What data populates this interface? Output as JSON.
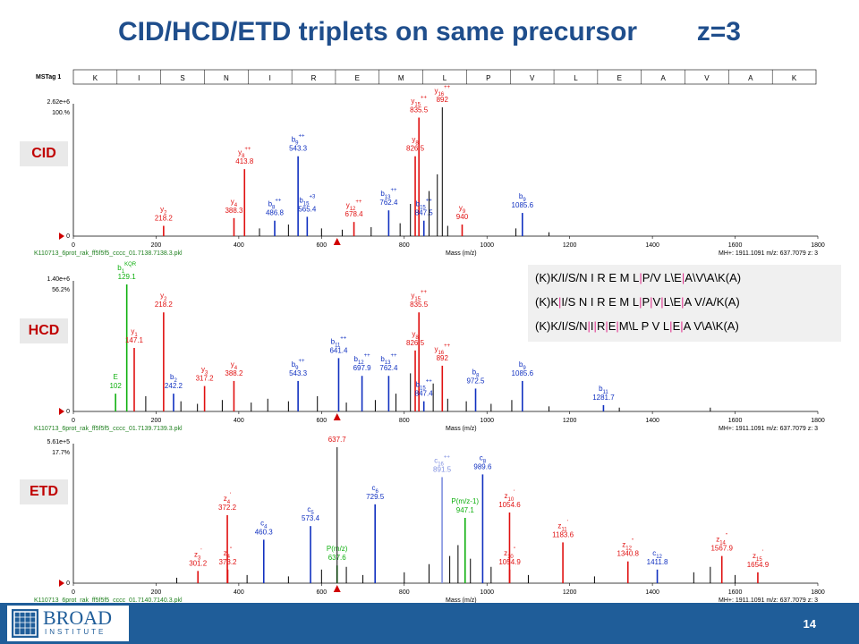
{
  "title": "CID/HCD/ETD triplets on same precursor        z=3",
  "colors": {
    "title": "#1f4e8c",
    "tag_text": "#c00000",
    "red": "#e01010",
    "blue": "#1030c0",
    "green": "#10b010",
    "footer": "#1f5d99"
  },
  "sequence_header": {
    "label": "MSTag 1",
    "residues": [
      "K",
      "I",
      "S",
      "N",
      "I",
      "R",
      "E",
      "M",
      "L",
      "P",
      "V",
      "L",
      "E",
      "A",
      "V",
      "A",
      "K"
    ]
  },
  "sequence_box": {
    "lines": [
      [
        "(K)K",
        "/I",
        "/S",
        "/N I R E M L",
        "|P",
        "/V L",
        "\\E",
        "|A",
        "\\V",
        "\\A",
        "\\K(A)"
      ],
      [
        "(K)K",
        "|I",
        "/S N I R E M L",
        "|P",
        "|V",
        "|L",
        "\\E",
        "|A V",
        "/A",
        "/K(A)"
      ],
      [
        "(K)K",
        "/I",
        "/S",
        "/N",
        "|I",
        "|R",
        "|E",
        "|M",
        "\\L P V L",
        "|E",
        "|A V",
        "\\A",
        "\\K(A)"
      ]
    ]
  },
  "chart_data": [
    {
      "type": "bar",
      "panel_label": "CID",
      "xlabel": "Mass (m/z)",
      "xlim": [
        0,
        1800
      ],
      "x_ticks": [
        "0",
        "200",
        "400",
        "600",
        "800",
        "1000",
        "1200",
        "1400",
        "1600",
        "1800"
      ],
      "ylim": [
        0,
        100
      ],
      "intensity_max": "2.62e+6",
      "intensity_pct": "100.%",
      "y_bottom": "0",
      "filename": "K110713_6prot_rak_ff5f5f5_cccc_01.7138.7138.3.pkl",
      "precursor": "MH+: 1911.1091   m/z: 637.7079   z: 3",
      "peaks": [
        {
          "x": 218.2,
          "y": 8,
          "c": "red",
          "l": [
            "y",
            "2",
            "",
            "218.2"
          ]
        },
        {
          "x": 388.3,
          "y": 14,
          "c": "red",
          "l": [
            "y",
            "4",
            "",
            "388.3"
          ]
        },
        {
          "x": 413.8,
          "y": 52,
          "c": "red",
          "l": [
            "y",
            "8",
            "++",
            "413.8"
          ]
        },
        {
          "x": 486.8,
          "y": 12,
          "c": "blue",
          "l": [
            "b",
            "8",
            "++",
            "486.8"
          ]
        },
        {
          "x": 543.3,
          "y": 62,
          "c": "blue",
          "l": [
            "b",
            "9",
            "++",
            "543.3"
          ]
        },
        {
          "x": 565.4,
          "y": 15,
          "c": "blue",
          "l": [
            "b",
            "15",
            "+3",
            "565.4"
          ]
        },
        {
          "x": 678.4,
          "y": 11,
          "c": "red",
          "l": [
            "y",
            "12",
            "++",
            "678.4"
          ]
        },
        {
          "x": 762.4,
          "y": 20,
          "c": "blue",
          "l": [
            "b",
            "13",
            "++",
            "762.4"
          ]
        },
        {
          "x": 826.5,
          "y": 62,
          "c": "red",
          "l": [
            "y",
            "8",
            "",
            "826.5"
          ]
        },
        {
          "x": 835.5,
          "y": 92,
          "c": "red",
          "l": [
            "y",
            "15",
            "++",
            "835.5"
          ]
        },
        {
          "x": 847.5,
          "y": 12,
          "c": "blue",
          "l": [
            "b",
            "15",
            "++",
            "847.5"
          ]
        },
        {
          "x": 892,
          "y": 100,
          "c": "black",
          "l": [
            "y",
            "16",
            "++",
            "892"
          ]
        },
        {
          "x": 940,
          "y": 9,
          "c": "red",
          "l": [
            "y",
            "9",
            "",
            "940"
          ]
        },
        {
          "x": 1085.6,
          "y": 18,
          "c": "blue",
          "l": [
            "b",
            "9",
            "",
            "1085.6"
          ]
        },
        {
          "x": 450,
          "y": 6,
          "c": "black"
        },
        {
          "x": 520,
          "y": 9,
          "c": "black"
        },
        {
          "x": 600,
          "y": 6,
          "c": "black"
        },
        {
          "x": 650,
          "y": 5,
          "c": "black"
        },
        {
          "x": 720,
          "y": 7,
          "c": "black"
        },
        {
          "x": 790,
          "y": 10,
          "c": "black"
        },
        {
          "x": 815,
          "y": 25,
          "c": "black"
        },
        {
          "x": 860,
          "y": 35,
          "c": "black"
        },
        {
          "x": 880,
          "y": 48,
          "c": "black"
        },
        {
          "x": 905,
          "y": 8,
          "c": "black"
        },
        {
          "x": 1070,
          "y": 6,
          "c": "black"
        },
        {
          "x": 1150,
          "y": 3,
          "c": "black"
        }
      ]
    },
    {
      "type": "bar",
      "panel_label": "HCD",
      "xlabel": "Mass (m/z)",
      "xlim": [
        0,
        1800
      ],
      "x_ticks": [
        "0",
        "200",
        "400",
        "600",
        "800",
        "1000",
        "1200",
        "1400",
        "1600",
        "1800"
      ],
      "ylim": [
        0,
        100
      ],
      "intensity_max": "1.40e+6",
      "intensity_pct": "56.2%",
      "y_bottom": "0",
      "filename": "K110713_6prot_rak_ff5f5f5_cccc_01.7139.7139.3.pkl",
      "precursor": "MH+: 1911.1091   m/z: 637.7079   z: 3",
      "peaks": [
        {
          "x": 102,
          "y": 14,
          "c": "green",
          "l": [
            "E",
            "",
            "",
            "102"
          ]
        },
        {
          "x": 129.1,
          "y": 100,
          "c": "green",
          "l": [
            "b",
            "1",
            "KQR",
            "129.1"
          ]
        },
        {
          "x": 147.1,
          "y": 50,
          "c": "red",
          "l": [
            "y",
            "1",
            "",
            "147.1"
          ]
        },
        {
          "x": 218.2,
          "y": 78,
          "c": "red",
          "l": [
            "y",
            "2",
            "",
            "218.2"
          ]
        },
        {
          "x": 242.2,
          "y": 14,
          "c": "blue",
          "l": [
            "b",
            "2",
            "",
            "242.2"
          ]
        },
        {
          "x": 317.2,
          "y": 20,
          "c": "red",
          "l": [
            "y",
            "3",
            "",
            "317.2"
          ]
        },
        {
          "x": 388.2,
          "y": 24,
          "c": "red",
          "l": [
            "y",
            "4",
            "",
            "388.2"
          ]
        },
        {
          "x": 543.3,
          "y": 24,
          "c": "blue",
          "l": [
            "b",
            "9",
            "++",
            "543.3"
          ]
        },
        {
          "x": 641.4,
          "y": 42,
          "c": "blue",
          "l": [
            "b",
            "11",
            "++",
            "641.4"
          ]
        },
        {
          "x": 697.9,
          "y": 28,
          "c": "blue",
          "l": [
            "b",
            "12",
            "++",
            "697.9"
          ]
        },
        {
          "x": 762.4,
          "y": 28,
          "c": "blue",
          "l": [
            "b",
            "13",
            "++",
            "762.4"
          ]
        },
        {
          "x": 826.5,
          "y": 48,
          "c": "red",
          "l": [
            "y",
            "8",
            "",
            "826.5"
          ]
        },
        {
          "x": 835.5,
          "y": 78,
          "c": "red",
          "l": [
            "y",
            "15",
            "++",
            "835.5"
          ]
        },
        {
          "x": 847.4,
          "y": 8,
          "c": "blue",
          "l": [
            "b",
            "15",
            "++",
            "847.4"
          ]
        },
        {
          "x": 892,
          "y": 36,
          "c": "red",
          "l": [
            "y",
            "16",
            "++",
            "892"
          ]
        },
        {
          "x": 972.5,
          "y": 18,
          "c": "blue",
          "l": [
            "b",
            "8",
            "",
            "972.5"
          ]
        },
        {
          "x": 1085.6,
          "y": 24,
          "c": "blue",
          "l": [
            "b",
            "9",
            "",
            "1085.6"
          ]
        },
        {
          "x": 1281.7,
          "y": 5,
          "c": "blue",
          "l": [
            "b",
            "11",
            "",
            "1281.7"
          ]
        },
        {
          "x": 175,
          "y": 12,
          "c": "black"
        },
        {
          "x": 260,
          "y": 8,
          "c": "black"
        },
        {
          "x": 300,
          "y": 6,
          "c": "black"
        },
        {
          "x": 360,
          "y": 9,
          "c": "black"
        },
        {
          "x": 430,
          "y": 7,
          "c": "black"
        },
        {
          "x": 470,
          "y": 10,
          "c": "black"
        },
        {
          "x": 520,
          "y": 8,
          "c": "black"
        },
        {
          "x": 590,
          "y": 12,
          "c": "black"
        },
        {
          "x": 660,
          "y": 7,
          "c": "black"
        },
        {
          "x": 730,
          "y": 9,
          "c": "black"
        },
        {
          "x": 780,
          "y": 14,
          "c": "black"
        },
        {
          "x": 815,
          "y": 30,
          "c": "black"
        },
        {
          "x": 870,
          "y": 22,
          "c": "black"
        },
        {
          "x": 905,
          "y": 10,
          "c": "black"
        },
        {
          "x": 950,
          "y": 8,
          "c": "black"
        },
        {
          "x": 1010,
          "y": 6,
          "c": "black"
        },
        {
          "x": 1060,
          "y": 9,
          "c": "black"
        },
        {
          "x": 1150,
          "y": 4,
          "c": "black"
        },
        {
          "x": 1320,
          "y": 3,
          "c": "black"
        },
        {
          "x": 1540,
          "y": 3,
          "c": "black"
        }
      ]
    },
    {
      "type": "bar",
      "panel_label": "ETD",
      "xlabel": "Mass (m/z)",
      "xlim": [
        0,
        1800
      ],
      "x_ticks": [
        "0",
        "200",
        "400",
        "600",
        "800",
        "1000",
        "1200",
        "1400",
        "1600",
        "1800"
      ],
      "ylim": [
        0,
        100
      ],
      "intensity_max": "5.61e+5",
      "intensity_pct": "17.7%",
      "y_bottom": "0",
      "filename": "K110713_6prot_rak_ff5f5f5_cccc_01.7140.7140.3.pkl",
      "precursor": "MH+: 1911.1091   m/z: 637.7079   z: 3",
      "peaks": [
        {
          "x": 301.2,
          "y": 9,
          "c": "red",
          "l": [
            "z",
            "3",
            "'",
            "301.2"
          ]
        },
        {
          "x": 372.2,
          "y": 50,
          "c": "red",
          "l": [
            "z",
            "4",
            "'",
            "372.2"
          ]
        },
        {
          "x": 373.2,
          "y": 10,
          "c": "red",
          "l": [
            "z",
            "4",
            "''",
            "373.2"
          ]
        },
        {
          "x": 460.3,
          "y": 32,
          "c": "blue",
          "l": [
            "c",
            "4",
            "",
            "460.3"
          ]
        },
        {
          "x": 573.4,
          "y": 42,
          "c": "blue",
          "l": [
            "c",
            "5",
            "",
            "573.4"
          ]
        },
        {
          "x": 637.6,
          "y": 13,
          "c": "green",
          "l": [
            "P(m/z)",
            "",
            "",
            "637.6"
          ]
        },
        {
          "x": 637.7,
          "y": 100,
          "c": "black",
          "l": [
            "",
            "",
            "",
            "637.7"
          ]
        },
        {
          "x": 729.5,
          "y": 58,
          "c": "blue",
          "l": [
            "c",
            "6",
            "",
            "729.5"
          ]
        },
        {
          "x": 891.5,
          "y": 78,
          "c": "lightblue",
          "l": [
            "c",
            "16",
            "++",
            "891.5"
          ]
        },
        {
          "x": 947.1,
          "y": 48,
          "c": "green",
          "l": [
            "P(m/z-1)",
            "",
            "",
            "947.1"
          ]
        },
        {
          "x": 989.6,
          "y": 80,
          "c": "blue",
          "l": [
            "c",
            "8",
            "",
            "989.6"
          ]
        },
        {
          "x": 1054.6,
          "y": 52,
          "c": "red",
          "l": [
            "z",
            "10",
            "'",
            "1054.6"
          ]
        },
        {
          "x": 1054.9,
          "y": 10,
          "c": "red",
          "l": [
            "z",
            "10",
            "''",
            "1054.9"
          ]
        },
        {
          "x": 1183.6,
          "y": 30,
          "c": "red",
          "l": [
            "z",
            "11",
            "'",
            "1183.6"
          ]
        },
        {
          "x": 1340.8,
          "y": 16,
          "c": "red",
          "l": [
            "z",
            "12",
            "''",
            "1340.8"
          ]
        },
        {
          "x": 1411.8,
          "y": 10,
          "c": "blue",
          "l": [
            "c",
            "12",
            "",
            "1411.8"
          ]
        },
        {
          "x": 1567.9,
          "y": 20,
          "c": "red",
          "l": [
            "z",
            "14",
            "''",
            "1567.9"
          ]
        },
        {
          "x": 1654.9,
          "y": 8,
          "c": "red",
          "l": [
            "z",
            "15",
            "'",
            "1654.9"
          ]
        },
        {
          "x": 250,
          "y": 4,
          "c": "black"
        },
        {
          "x": 420,
          "y": 6,
          "c": "black"
        },
        {
          "x": 520,
          "y": 5,
          "c": "black"
        },
        {
          "x": 600,
          "y": 10,
          "c": "black"
        },
        {
          "x": 660,
          "y": 12,
          "c": "black"
        },
        {
          "x": 700,
          "y": 6,
          "c": "black"
        },
        {
          "x": 800,
          "y": 8,
          "c": "black"
        },
        {
          "x": 860,
          "y": 14,
          "c": "black"
        },
        {
          "x": 910,
          "y": 20,
          "c": "black"
        },
        {
          "x": 930,
          "y": 28,
          "c": "black"
        },
        {
          "x": 960,
          "y": 18,
          "c": "black"
        },
        {
          "x": 1010,
          "y": 12,
          "c": "black"
        },
        {
          "x": 1100,
          "y": 6,
          "c": "black"
        },
        {
          "x": 1260,
          "y": 5,
          "c": "black"
        },
        {
          "x": 1500,
          "y": 8,
          "c": "black"
        },
        {
          "x": 1540,
          "y": 12,
          "c": "black"
        },
        {
          "x": 1600,
          "y": 6,
          "c": "black"
        }
      ]
    }
  ],
  "footer": {
    "logo_name": "BROAD",
    "logo_sub": "INSTITUTE",
    "page_number": "14"
  }
}
